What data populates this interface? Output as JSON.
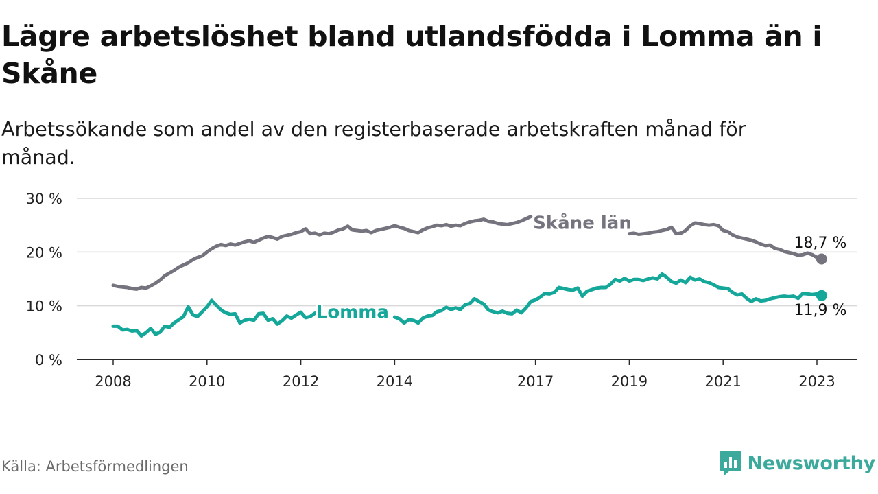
{
  "title": "Lägre arbetslöshet bland utlandsfödda i Lomma än i Skåne",
  "subtitle": "Arbetssökande som andel av den registerbaserade arbetskraften månad för månad.",
  "source": "Källa: Arbetsförmedlingen",
  "brand": {
    "name": "Newsworthy",
    "logo_icon": "newsworthy-logo-icon",
    "color": "#3ba99c"
  },
  "chart_data": {
    "type": "line",
    "ylim": [
      0,
      30
    ],
    "xlim": [
      2007.85,
      2023.75
    ],
    "y_ticks": [
      0,
      10,
      20,
      30
    ],
    "y_tick_labels": [
      "0 %",
      "10 %",
      "20 %",
      "30 %"
    ],
    "x_ticks": [
      2008,
      2010,
      2012,
      2014,
      2017,
      2019,
      2021,
      2023
    ],
    "x_tick_labels": [
      "2008",
      "2010",
      "2012",
      "2014",
      "2017",
      "2019",
      "2021",
      "2023"
    ],
    "grid": "horizontal",
    "series": [
      {
        "name": "Skåne län",
        "color": "#75737d",
        "end_label": "18,7 %",
        "points": [
          [
            2008.0,
            13.8
          ],
          [
            2008.1,
            13.6
          ],
          [
            2008.2,
            13.5
          ],
          [
            2008.3,
            13.4
          ],
          [
            2008.4,
            13.2
          ],
          [
            2008.5,
            13.1
          ],
          [
            2008.6,
            13.4
          ],
          [
            2008.7,
            13.3
          ],
          [
            2008.8,
            13.7
          ],
          [
            2008.9,
            14.2
          ],
          [
            2009.0,
            14.8
          ],
          [
            2009.1,
            15.6
          ],
          [
            2009.2,
            16.1
          ],
          [
            2009.3,
            16.6
          ],
          [
            2009.4,
            17.2
          ],
          [
            2009.5,
            17.6
          ],
          [
            2009.6,
            18.0
          ],
          [
            2009.7,
            18.6
          ],
          [
            2009.8,
            19.0
          ],
          [
            2009.9,
            19.3
          ],
          [
            2010.0,
            20.0
          ],
          [
            2010.1,
            20.6
          ],
          [
            2010.2,
            21.1
          ],
          [
            2010.3,
            21.4
          ],
          [
            2010.4,
            21.2
          ],
          [
            2010.5,
            21.5
          ],
          [
            2010.6,
            21.3
          ],
          [
            2010.7,
            21.6
          ],
          [
            2010.8,
            21.9
          ],
          [
            2010.9,
            22.1
          ],
          [
            2011.0,
            21.8
          ],
          [
            2011.1,
            22.2
          ],
          [
            2011.2,
            22.6
          ],
          [
            2011.3,
            22.9
          ],
          [
            2011.4,
            22.7
          ],
          [
            2011.5,
            22.4
          ],
          [
            2011.6,
            22.9
          ],
          [
            2011.7,
            23.1
          ],
          [
            2011.8,
            23.3
          ],
          [
            2011.9,
            23.6
          ],
          [
            2012.0,
            23.8
          ],
          [
            2012.1,
            24.3
          ],
          [
            2012.2,
            23.4
          ],
          [
            2012.3,
            23.5
          ],
          [
            2012.4,
            23.2
          ],
          [
            2012.5,
            23.5
          ],
          [
            2012.6,
            23.4
          ],
          [
            2012.7,
            23.7
          ],
          [
            2012.8,
            24.1
          ],
          [
            2012.9,
            24.3
          ],
          [
            2013.0,
            24.8
          ],
          [
            2013.1,
            24.1
          ],
          [
            2013.2,
            24.0
          ],
          [
            2013.3,
            23.9
          ],
          [
            2013.4,
            24.0
          ],
          [
            2013.5,
            23.6
          ],
          [
            2013.6,
            24.0
          ],
          [
            2013.7,
            24.2
          ],
          [
            2013.8,
            24.4
          ],
          [
            2013.9,
            24.6
          ],
          [
            2014.0,
            24.9
          ],
          [
            2014.1,
            24.6
          ],
          [
            2014.2,
            24.4
          ],
          [
            2014.3,
            24.0
          ],
          [
            2014.4,
            23.8
          ],
          [
            2014.5,
            23.6
          ],
          [
            2014.6,
            24.1
          ],
          [
            2014.7,
            24.5
          ],
          [
            2014.8,
            24.7
          ],
          [
            2014.9,
            25.0
          ],
          [
            2015.0,
            24.9
          ],
          [
            2015.1,
            25.1
          ],
          [
            2015.2,
            24.8
          ],
          [
            2015.3,
            25.0
          ],
          [
            2015.4,
            24.9
          ],
          [
            2015.5,
            25.3
          ],
          [
            2015.6,
            25.6
          ],
          [
            2015.7,
            25.8
          ],
          [
            2015.8,
            25.9
          ],
          [
            2015.9,
            26.1
          ],
          [
            2016.0,
            25.7
          ],
          [
            2016.1,
            25.6
          ],
          [
            2016.2,
            25.3
          ],
          [
            2016.3,
            25.2
          ],
          [
            2016.4,
            25.1
          ],
          [
            2016.5,
            25.3
          ],
          [
            2016.6,
            25.5
          ],
          [
            2016.7,
            25.8
          ],
          [
            2016.8,
            26.2
          ],
          [
            2016.9,
            26.6
          ],
          [
            2019.0,
            23.4
          ],
          [
            2019.1,
            23.5
          ],
          [
            2019.2,
            23.3
          ],
          [
            2019.3,
            23.4
          ],
          [
            2019.4,
            23.5
          ],
          [
            2019.5,
            23.7
          ],
          [
            2019.6,
            23.8
          ],
          [
            2019.7,
            24.0
          ],
          [
            2019.8,
            24.2
          ],
          [
            2019.9,
            24.6
          ],
          [
            2020.0,
            23.4
          ],
          [
            2020.1,
            23.5
          ],
          [
            2020.2,
            24.0
          ],
          [
            2020.3,
            24.9
          ],
          [
            2020.4,
            25.4
          ],
          [
            2020.5,
            25.3
          ],
          [
            2020.6,
            25.1
          ],
          [
            2020.7,
            25.0
          ],
          [
            2020.8,
            25.1
          ],
          [
            2020.9,
            24.9
          ],
          [
            2021.0,
            24.0
          ],
          [
            2021.1,
            23.8
          ],
          [
            2021.2,
            23.2
          ],
          [
            2021.3,
            22.8
          ],
          [
            2021.4,
            22.6
          ],
          [
            2021.5,
            22.4
          ],
          [
            2021.6,
            22.2
          ],
          [
            2021.7,
            21.9
          ],
          [
            2021.8,
            21.5
          ],
          [
            2021.9,
            21.2
          ],
          [
            2022.0,
            21.3
          ],
          [
            2022.1,
            20.7
          ],
          [
            2022.2,
            20.5
          ],
          [
            2022.3,
            20.1
          ],
          [
            2022.4,
            19.9
          ],
          [
            2022.5,
            19.7
          ],
          [
            2022.6,
            19.4
          ],
          [
            2022.7,
            19.5
          ],
          [
            2022.8,
            19.8
          ],
          [
            2022.9,
            19.5
          ],
          [
            2023.0,
            19.0
          ],
          [
            2023.1,
            18.7
          ]
        ]
      },
      {
        "name": "Lomma",
        "color": "#14a79a",
        "end_label": "11,9 %",
        "points": [
          [
            2008.0,
            6.2
          ],
          [
            2008.1,
            6.2
          ],
          [
            2008.2,
            5.5
          ],
          [
            2008.3,
            5.6
          ],
          [
            2008.4,
            5.3
          ],
          [
            2008.5,
            5.4
          ],
          [
            2008.6,
            4.4
          ],
          [
            2008.7,
            5.0
          ],
          [
            2008.8,
            5.8
          ],
          [
            2008.9,
            4.7
          ],
          [
            2009.0,
            5.1
          ],
          [
            2009.1,
            6.2
          ],
          [
            2009.2,
            6.0
          ],
          [
            2009.3,
            6.8
          ],
          [
            2009.4,
            7.4
          ],
          [
            2009.5,
            8.0
          ],
          [
            2009.6,
            9.8
          ],
          [
            2009.7,
            8.3
          ],
          [
            2009.8,
            8.0
          ],
          [
            2009.9,
            8.9
          ],
          [
            2010.0,
            9.8
          ],
          [
            2010.1,
            11.0
          ],
          [
            2010.2,
            10.1
          ],
          [
            2010.3,
            9.2
          ],
          [
            2010.4,
            8.7
          ],
          [
            2010.5,
            8.4
          ],
          [
            2010.6,
            8.5
          ],
          [
            2010.7,
            6.8
          ],
          [
            2010.8,
            7.3
          ],
          [
            2010.9,
            7.5
          ],
          [
            2011.0,
            7.3
          ],
          [
            2011.1,
            8.5
          ],
          [
            2011.2,
            8.6
          ],
          [
            2011.3,
            7.3
          ],
          [
            2011.4,
            7.6
          ],
          [
            2011.5,
            6.6
          ],
          [
            2011.6,
            7.2
          ],
          [
            2011.7,
            8.1
          ],
          [
            2011.8,
            7.7
          ],
          [
            2011.9,
            8.3
          ],
          [
            2012.0,
            8.8
          ],
          [
            2012.1,
            7.8
          ],
          [
            2012.2,
            8.0
          ],
          [
            2012.3,
            8.6
          ],
          [
            2012.4,
            8.7
          ],
          [
            2014.0,
            7.9
          ],
          [
            2014.1,
            7.6
          ],
          [
            2014.2,
            6.8
          ],
          [
            2014.3,
            7.4
          ],
          [
            2014.4,
            7.3
          ],
          [
            2014.5,
            6.8
          ],
          [
            2014.6,
            7.7
          ],
          [
            2014.7,
            8.1
          ],
          [
            2014.8,
            8.2
          ],
          [
            2014.9,
            8.9
          ],
          [
            2015.0,
            9.1
          ],
          [
            2015.1,
            9.7
          ],
          [
            2015.2,
            9.3
          ],
          [
            2015.3,
            9.6
          ],
          [
            2015.4,
            9.3
          ],
          [
            2015.5,
            10.2
          ],
          [
            2015.6,
            10.4
          ],
          [
            2015.7,
            11.3
          ],
          [
            2015.8,
            10.8
          ],
          [
            2015.9,
            10.3
          ],
          [
            2016.0,
            9.2
          ],
          [
            2016.1,
            8.9
          ],
          [
            2016.2,
            8.7
          ],
          [
            2016.3,
            9.0
          ],
          [
            2016.4,
            8.6
          ],
          [
            2016.5,
            8.5
          ],
          [
            2016.6,
            9.2
          ],
          [
            2016.7,
            8.7
          ],
          [
            2016.8,
            9.6
          ],
          [
            2016.9,
            10.8
          ],
          [
            2017.0,
            11.1
          ],
          [
            2017.1,
            11.6
          ],
          [
            2017.2,
            12.3
          ],
          [
            2017.3,
            12.2
          ],
          [
            2017.4,
            12.5
          ],
          [
            2017.5,
            13.4
          ],
          [
            2017.6,
            13.2
          ],
          [
            2017.7,
            13.0
          ],
          [
            2017.8,
            12.9
          ],
          [
            2017.9,
            13.3
          ],
          [
            2018.0,
            11.8
          ],
          [
            2018.1,
            12.7
          ],
          [
            2018.2,
            13.0
          ],
          [
            2018.3,
            13.3
          ],
          [
            2018.4,
            13.4
          ],
          [
            2018.5,
            13.4
          ],
          [
            2018.6,
            14.0
          ],
          [
            2018.7,
            14.9
          ],
          [
            2018.8,
            14.6
          ],
          [
            2018.9,
            15.1
          ],
          [
            2019.0,
            14.6
          ],
          [
            2019.1,
            14.9
          ],
          [
            2019.2,
            14.9
          ],
          [
            2019.3,
            14.7
          ],
          [
            2019.4,
            15.0
          ],
          [
            2019.5,
            15.2
          ],
          [
            2019.6,
            15.0
          ],
          [
            2019.7,
            15.9
          ],
          [
            2019.8,
            15.3
          ],
          [
            2019.9,
            14.5
          ],
          [
            2020.0,
            14.2
          ],
          [
            2020.1,
            14.8
          ],
          [
            2020.2,
            14.3
          ],
          [
            2020.3,
            15.3
          ],
          [
            2020.4,
            14.8
          ],
          [
            2020.5,
            15.0
          ],
          [
            2020.6,
            14.5
          ],
          [
            2020.7,
            14.3
          ],
          [
            2020.8,
            13.9
          ],
          [
            2020.9,
            13.4
          ],
          [
            2021.0,
            13.3
          ],
          [
            2021.1,
            13.2
          ],
          [
            2021.2,
            12.5
          ],
          [
            2021.3,
            12.0
          ],
          [
            2021.4,
            12.2
          ],
          [
            2021.5,
            11.4
          ],
          [
            2021.6,
            10.8
          ],
          [
            2021.7,
            11.3
          ],
          [
            2021.8,
            10.9
          ],
          [
            2021.9,
            11.0
          ],
          [
            2022.0,
            11.3
          ],
          [
            2022.1,
            11.5
          ],
          [
            2022.2,
            11.7
          ],
          [
            2022.3,
            11.8
          ],
          [
            2022.4,
            11.7
          ],
          [
            2022.5,
            11.8
          ],
          [
            2022.6,
            11.4
          ],
          [
            2022.7,
            12.3
          ],
          [
            2022.8,
            12.2
          ],
          [
            2022.9,
            12.1
          ],
          [
            2023.0,
            12.2
          ],
          [
            2023.1,
            11.9
          ]
        ]
      }
    ],
    "series_labels": [
      {
        "text": "Skåne län",
        "x": 2018.0,
        "y": 25.5,
        "color": "#75737d"
      },
      {
        "text": "Lomma",
        "x": 2013.1,
        "y": 8.9,
        "color": "#14a79a"
      }
    ]
  }
}
